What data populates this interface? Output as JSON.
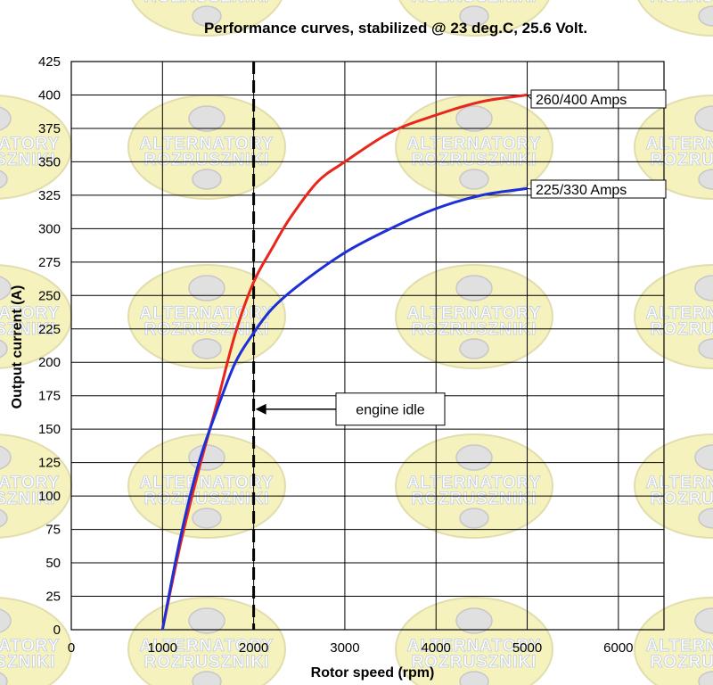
{
  "chart_data": {
    "type": "line",
    "title": "Performance curves,  stabilized @ 23 deg.C, 25.6 Volt.",
    "xlabel": "Rotor speed (rpm)",
    "ylabel": "Output current  (A)",
    "xlim": [
      0,
      6500
    ],
    "ylim": [
      0,
      425
    ],
    "xticks": [
      "0",
      "1000",
      "2000",
      "3000",
      "4000",
      "5000",
      "6000"
    ],
    "yticks": [
      "0",
      "25",
      "50",
      "75",
      "100",
      "125",
      "150",
      "175",
      "200",
      "225",
      "250",
      "275",
      "300",
      "325",
      "350",
      "375",
      "400",
      "425"
    ],
    "grid": true,
    "series": [
      {
        "name": "260/400 Amps",
        "color": "#e8261c",
        "x": [
          1000,
          1200,
          1400,
          1600,
          1800,
          2000,
          2200,
          2400,
          2700,
          3000,
          3500,
          4000,
          4500,
          5000
        ],
        "y": [
          0,
          65,
          120,
          170,
          222,
          260,
          285,
          308,
          335,
          350,
          372,
          385,
          395,
          400
        ]
      },
      {
        "name": "225/330 Amps",
        "color": "#1e2fd8",
        "x": [
          1000,
          1200,
          1400,
          1600,
          1800,
          2000,
          2200,
          2500,
          3000,
          3500,
          4000,
          4500,
          5000
        ],
        "y": [
          0,
          70,
          125,
          165,
          200,
          222,
          240,
          258,
          282,
          300,
          315,
          325,
          330
        ]
      }
    ],
    "annotations": [
      {
        "label": "260/400 Amps",
        "x": 5000,
        "y": 400
      },
      {
        "label": "225/330 Amps",
        "x": 5000,
        "y": 330
      },
      {
        "label": "engine idle",
        "x": 2000,
        "y": 165
      }
    ],
    "idle_line_x": 2000
  },
  "watermark": {
    "line1": "ALTERNATORY",
    "line2": "ROZRUSZNIKI"
  }
}
